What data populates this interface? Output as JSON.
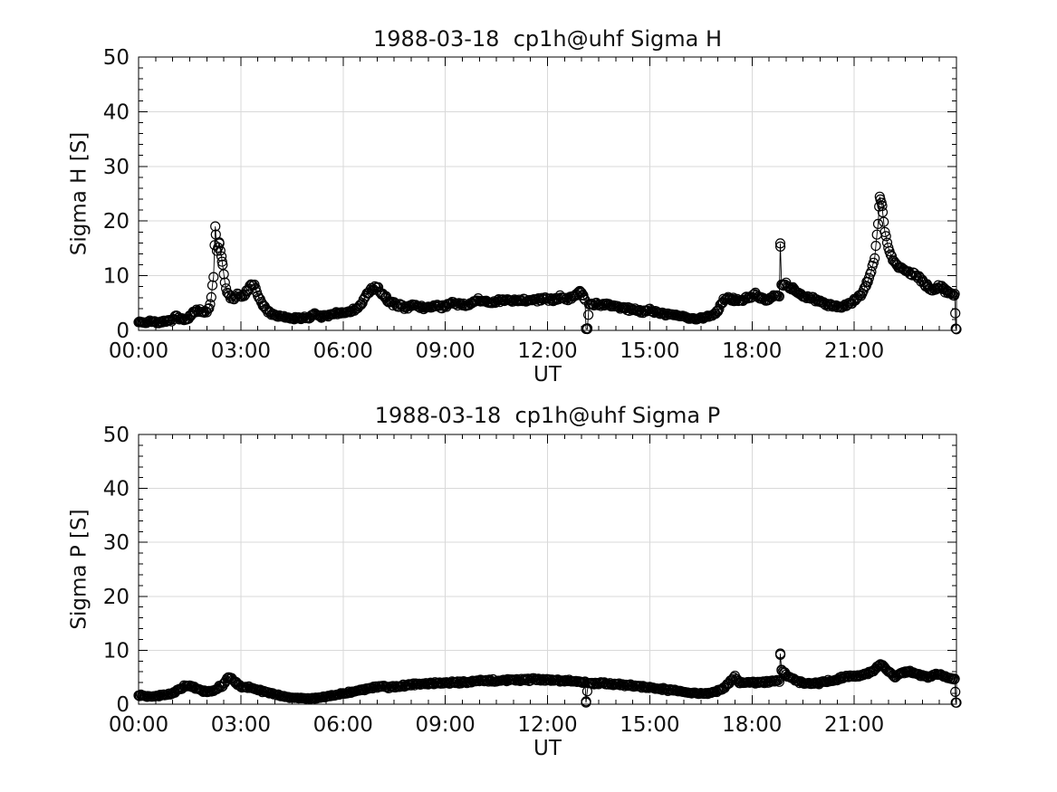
{
  "figure": {
    "background_color": "#ffffff",
    "text_color": "#111111",
    "data_color": "#000000",
    "grid_color": "#d9d9d9"
  },
  "chart_data": [
    {
      "type": "scatter",
      "title": "1988-03-18  cp1h@uhf Sigma H",
      "xlabel": "UT",
      "ylabel": "Sigma H [S]",
      "xlim_hours": [
        0,
        24
      ],
      "ylim": [
        0,
        50
      ],
      "x_tick_hours": [
        0,
        3,
        6,
        9,
        12,
        15,
        18,
        21
      ],
      "x_tick_labels": [
        "00:00",
        "03:00",
        "06:00",
        "09:00",
        "12:00",
        "15:00",
        "18:00",
        "21:00"
      ],
      "y_ticks": [
        0,
        10,
        20,
        30,
        40,
        50
      ],
      "minor_x_step_hours": 0.5,
      "minor_y_step": 2,
      "grid": true,
      "legend": "none",
      "marker": "open-circle",
      "marker_radius_px": 5,
      "sample_step_minutes": 2,
      "noise_amplitude": 0.55,
      "noise_seed": 7,
      "series": [
        {
          "name": "Sigma H",
          "anchor_points_hour_value": [
            [
              0.03,
              1.6
            ],
            [
              0.2,
              1.4
            ],
            [
              0.4,
              1.7
            ],
            [
              0.6,
              1.4
            ],
            [
              0.8,
              1.6
            ],
            [
              1.0,
              1.9
            ],
            [
              1.1,
              2.6
            ],
            [
              1.2,
              2.1
            ],
            [
              1.35,
              1.9
            ],
            [
              1.5,
              2.6
            ],
            [
              1.65,
              3.4
            ],
            [
              1.8,
              3.6
            ],
            [
              1.9,
              3.1
            ],
            [
              2.0,
              3.4
            ],
            [
              2.1,
              4.6
            ],
            [
              2.2,
              9.5
            ],
            [
              2.25,
              18.8
            ],
            [
              2.3,
              14.5
            ],
            [
              2.37,
              16.0
            ],
            [
              2.45,
              12.5
            ],
            [
              2.5,
              10.0
            ],
            [
              2.6,
              6.8
            ],
            [
              2.7,
              6.2
            ],
            [
              2.8,
              5.8
            ],
            [
              2.9,
              6.6
            ],
            [
              3.0,
              6.2
            ],
            [
              3.1,
              6.6
            ],
            [
              3.2,
              7.2
            ],
            [
              3.3,
              8.6
            ],
            [
              3.4,
              8.0
            ],
            [
              3.5,
              6.4
            ],
            [
              3.65,
              4.6
            ],
            [
              3.8,
              3.4
            ],
            [
              4.0,
              2.8
            ],
            [
              4.2,
              2.4
            ],
            [
              4.4,
              2.3
            ],
            [
              4.6,
              2.2
            ],
            [
              4.8,
              2.3
            ],
            [
              5.0,
              2.4
            ],
            [
              5.2,
              2.9
            ],
            [
              5.35,
              2.6
            ],
            [
              5.5,
              2.5
            ],
            [
              5.7,
              2.9
            ],
            [
              5.9,
              3.2
            ],
            [
              6.1,
              3.3
            ],
            [
              6.3,
              3.7
            ],
            [
              6.5,
              4.4
            ],
            [
              6.7,
              6.6
            ],
            [
              6.85,
              7.6
            ],
            [
              7.0,
              7.7
            ],
            [
              7.1,
              7.1
            ],
            [
              7.25,
              5.9
            ],
            [
              7.4,
              5.1
            ],
            [
              7.6,
              4.6
            ],
            [
              7.8,
              4.3
            ],
            [
              8.0,
              4.6
            ],
            [
              8.2,
              4.3
            ],
            [
              8.4,
              4.1
            ],
            [
              8.6,
              4.4
            ],
            [
              8.8,
              4.5
            ],
            [
              9.0,
              4.3
            ],
            [
              9.2,
              5.0
            ],
            [
              9.4,
              4.7
            ],
            [
              9.6,
              4.6
            ],
            [
              9.8,
              5.1
            ],
            [
              10.0,
              5.5
            ],
            [
              10.2,
              5.2
            ],
            [
              10.4,
              5.1
            ],
            [
              10.6,
              5.4
            ],
            [
              10.8,
              5.5
            ],
            [
              11.0,
              5.4
            ],
            [
              11.2,
              5.6
            ],
            [
              11.5,
              5.5
            ],
            [
              11.8,
              5.6
            ],
            [
              12.0,
              5.7
            ],
            [
              12.2,
              5.8
            ],
            [
              12.4,
              6.0
            ],
            [
              12.6,
              5.9
            ],
            [
              12.8,
              6.3
            ],
            [
              12.95,
              7.2
            ],
            [
              13.05,
              6.3
            ],
            [
              13.1,
              5.8
            ],
            [
              13.13,
              0.25
            ],
            [
              13.17,
              0.3
            ],
            [
              13.22,
              4.9
            ],
            [
              13.4,
              4.8
            ],
            [
              13.6,
              4.6
            ],
            [
              13.8,
              4.7
            ],
            [
              14.0,
              4.4
            ],
            [
              14.2,
              4.2
            ],
            [
              14.4,
              3.9
            ],
            [
              14.6,
              3.7
            ],
            [
              14.8,
              3.6
            ],
            [
              15.0,
              3.7
            ],
            [
              15.2,
              3.3
            ],
            [
              15.4,
              3.1
            ],
            [
              15.6,
              2.9
            ],
            [
              15.8,
              2.7
            ],
            [
              16.0,
              2.5
            ],
            [
              16.2,
              2.2
            ],
            [
              16.4,
              2.1
            ],
            [
              16.6,
              2.3
            ],
            [
              16.8,
              2.7
            ],
            [
              17.0,
              3.6
            ],
            [
              17.15,
              5.4
            ],
            [
              17.3,
              6.1
            ],
            [
              17.45,
              5.7
            ],
            [
              17.6,
              5.5
            ],
            [
              17.8,
              5.9
            ],
            [
              18.0,
              6.1
            ],
            [
              18.1,
              6.6
            ],
            [
              18.25,
              5.8
            ],
            [
              18.4,
              5.6
            ],
            [
              18.6,
              6.1
            ],
            [
              18.8,
              6.4
            ],
            [
              18.83,
              16.0
            ],
            [
              18.87,
              8.2
            ],
            [
              19.0,
              8.5
            ],
            [
              19.1,
              8.0
            ],
            [
              19.25,
              7.4
            ],
            [
              19.4,
              6.6
            ],
            [
              19.6,
              6.1
            ],
            [
              19.8,
              5.9
            ],
            [
              20.0,
              5.4
            ],
            [
              20.2,
              4.8
            ],
            [
              20.4,
              4.4
            ],
            [
              20.6,
              4.3
            ],
            [
              20.8,
              4.7
            ],
            [
              21.0,
              5.3
            ],
            [
              21.2,
              6.6
            ],
            [
              21.35,
              8.3
            ],
            [
              21.5,
              10.6
            ],
            [
              21.6,
              13.2
            ],
            [
              21.7,
              19.5
            ],
            [
              21.75,
              24.5
            ],
            [
              21.82,
              22.5
            ],
            [
              21.9,
              17.8
            ],
            [
              22.0,
              15.3
            ],
            [
              22.1,
              13.4
            ],
            [
              22.25,
              12.0
            ],
            [
              22.4,
              11.2
            ],
            [
              22.6,
              10.6
            ],
            [
              22.8,
              10.1
            ],
            [
              23.0,
              8.9
            ],
            [
              23.15,
              7.9
            ],
            [
              23.3,
              7.4
            ],
            [
              23.45,
              7.9
            ],
            [
              23.6,
              7.8
            ],
            [
              23.75,
              7.0
            ],
            [
              23.9,
              6.6
            ],
            [
              23.95,
              6.8
            ],
            [
              23.98,
              0.3
            ]
          ]
        }
      ]
    },
    {
      "type": "scatter",
      "title": "1988-03-18  cp1h@uhf Sigma P",
      "xlabel": "UT",
      "ylabel": "Sigma P [S]",
      "xlim_hours": [
        0,
        24
      ],
      "ylim": [
        0,
        50
      ],
      "x_tick_hours": [
        0,
        3,
        6,
        9,
        12,
        15,
        18,
        21
      ],
      "x_tick_labels": [
        "00:00",
        "03:00",
        "06:00",
        "09:00",
        "12:00",
        "15:00",
        "18:00",
        "21:00"
      ],
      "y_ticks": [
        0,
        10,
        20,
        30,
        40,
        50
      ],
      "minor_x_step_hours": 0.5,
      "minor_y_step": 2,
      "grid": true,
      "legend": "none",
      "marker": "open-circle",
      "marker_radius_px": 5,
      "sample_step_minutes": 2,
      "noise_amplitude": 0.35,
      "noise_seed": 13,
      "series": [
        {
          "name": "Sigma P",
          "anchor_points_hour_value": [
            [
              0.03,
              1.7
            ],
            [
              0.25,
              1.5
            ],
            [
              0.5,
              1.5
            ],
            [
              0.75,
              1.7
            ],
            [
              1.0,
              2.0
            ],
            [
              1.2,
              2.8
            ],
            [
              1.4,
              3.4
            ],
            [
              1.55,
              3.3
            ],
            [
              1.7,
              2.9
            ],
            [
              1.9,
              2.4
            ],
            [
              2.1,
              2.3
            ],
            [
              2.3,
              2.9
            ],
            [
              2.5,
              3.6
            ],
            [
              2.62,
              4.9
            ],
            [
              2.72,
              4.9
            ],
            [
              2.85,
              4.0
            ],
            [
              3.0,
              3.3
            ],
            [
              3.2,
              3.1
            ],
            [
              3.4,
              2.9
            ],
            [
              3.6,
              2.5
            ],
            [
              3.8,
              2.2
            ],
            [
              4.0,
              1.8
            ],
            [
              4.2,
              1.5
            ],
            [
              4.5,
              1.2
            ],
            [
              4.8,
              1.1
            ],
            [
              5.1,
              1.1
            ],
            [
              5.4,
              1.3
            ],
            [
              5.7,
              1.6
            ],
            [
              6.0,
              2.0
            ],
            [
              6.3,
              2.3
            ],
            [
              6.6,
              2.7
            ],
            [
              6.9,
              3.1
            ],
            [
              7.1,
              3.3
            ],
            [
              7.3,
              3.1
            ],
            [
              7.6,
              3.3
            ],
            [
              8.0,
              3.6
            ],
            [
              8.4,
              3.8
            ],
            [
              8.8,
              3.9
            ],
            [
              9.2,
              4.0
            ],
            [
              9.6,
              4.1
            ],
            [
              10.0,
              4.3
            ],
            [
              10.5,
              4.4
            ],
            [
              11.0,
              4.5
            ],
            [
              11.5,
              4.6
            ],
            [
              12.0,
              4.5
            ],
            [
              12.5,
              4.4
            ],
            [
              13.0,
              4.2
            ],
            [
              13.1,
              4.0
            ],
            [
              13.13,
              0.3
            ],
            [
              13.2,
              4.0
            ],
            [
              13.5,
              3.9
            ],
            [
              14.0,
              3.7
            ],
            [
              14.5,
              3.4
            ],
            [
              15.0,
              3.1
            ],
            [
              15.5,
              2.7
            ],
            [
              16.0,
              2.3
            ],
            [
              16.4,
              2.0
            ],
            [
              16.8,
              2.1
            ],
            [
              17.1,
              2.7
            ],
            [
              17.3,
              3.7
            ],
            [
              17.5,
              5.3
            ],
            [
              17.62,
              4.1
            ],
            [
              17.8,
              3.9
            ],
            [
              18.0,
              4.0
            ],
            [
              18.3,
              4.1
            ],
            [
              18.6,
              4.2
            ],
            [
              18.8,
              4.4
            ],
            [
              18.83,
              9.5
            ],
            [
              18.87,
              6.2
            ],
            [
              19.0,
              5.4
            ],
            [
              19.2,
              4.7
            ],
            [
              19.4,
              4.1
            ],
            [
              19.6,
              3.8
            ],
            [
              19.8,
              3.7
            ],
            [
              20.0,
              4.0
            ],
            [
              20.3,
              4.4
            ],
            [
              20.6,
              4.8
            ],
            [
              20.9,
              5.2
            ],
            [
              21.2,
              5.3
            ],
            [
              21.5,
              5.9
            ],
            [
              21.75,
              7.3
            ],
            [
              21.85,
              6.9
            ],
            [
              22.05,
              5.9
            ],
            [
              22.2,
              5.0
            ],
            [
              22.35,
              5.7
            ],
            [
              22.55,
              6.1
            ],
            [
              22.75,
              5.8
            ],
            [
              23.0,
              5.3
            ],
            [
              23.2,
              5.0
            ],
            [
              23.4,
              5.5
            ],
            [
              23.6,
              5.3
            ],
            [
              23.8,
              4.9
            ],
            [
              23.95,
              4.7
            ],
            [
              23.98,
              0.3
            ]
          ]
        }
      ]
    }
  ]
}
